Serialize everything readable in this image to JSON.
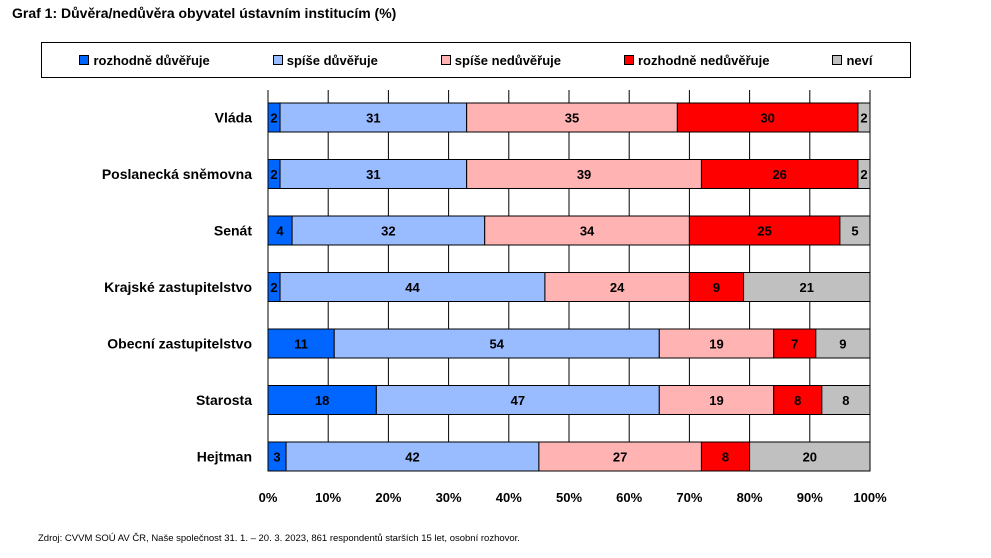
{
  "page": {
    "title": "Graf 1: Důvěra/nedůvěra obyvatel ústavním institucím (%)",
    "source": "Zdroj: CVVM SOÚ AV ČR, Naše společnost 31. 1. – 20. 3. 2023, 861 respondentů starších 15 let, osobní rozhovor."
  },
  "chart_data": {
    "type": "bar",
    "orientation": "horizontal",
    "stacked": true,
    "percent_stacked": true,
    "title": "Graf 1: Důvěra/nedůvěra obyvatel ústavním institucím (%)",
    "categories": [
      "Vláda",
      "Poslanecká sněmovna",
      "Senát",
      "Krajské zastupitelstvo",
      "Obecní zastupitelstvo",
      "Starosta",
      "Hejtman"
    ],
    "series": [
      {
        "name": "rozhodně důvěřuje",
        "color": "#0066ff",
        "values": [
          2,
          2,
          4,
          2,
          11,
          18,
          3
        ]
      },
      {
        "name": "spíše důvěřuje",
        "color": "#99bbff",
        "values": [
          31,
          31,
          32,
          44,
          54,
          47,
          42
        ]
      },
      {
        "name": "spíše nedůvěřuje",
        "color": "#ffb3b3",
        "values": [
          35,
          39,
          34,
          24,
          19,
          19,
          27
        ]
      },
      {
        "name": "rozhodně nedůvěřuje",
        "color": "#ff0000",
        "values": [
          30,
          26,
          25,
          9,
          7,
          8,
          8
        ]
      },
      {
        "name": "neví",
        "color": "#c0c0c0",
        "values": [
          2,
          2,
          5,
          21,
          9,
          8,
          20
        ]
      }
    ],
    "x_ticks": [
      "0%",
      "10%",
      "20%",
      "30%",
      "40%",
      "50%",
      "60%",
      "70%",
      "80%",
      "90%",
      "100%"
    ],
    "xlim": [
      0,
      100
    ],
    "grid": true,
    "legend": "top"
  }
}
